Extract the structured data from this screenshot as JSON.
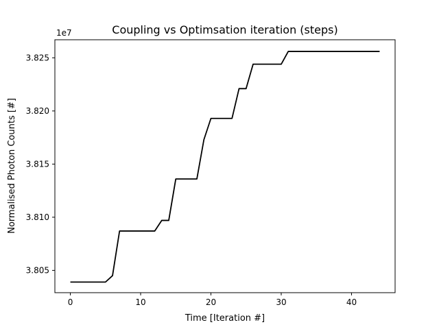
{
  "chart_data": {
    "type": "line",
    "title": "Coupling vs Optimsation iteration (steps)",
    "xlabel": "Time [Iteration #]",
    "ylabel": "Normalised Photon Counts [#]",
    "y_offset_label": "1e7",
    "xlim": [
      -2.2,
      46.2
    ],
    "ylim": [
      3.8029,
      3.8267
    ],
    "xticks": [
      {
        "value": 0,
        "label": "0"
      },
      {
        "value": 10,
        "label": "10"
      },
      {
        "value": 20,
        "label": "20"
      },
      {
        "value": 30,
        "label": "30"
      },
      {
        "value": 40,
        "label": "40"
      }
    ],
    "yticks": [
      {
        "value": 3.805,
        "label": "3.805"
      },
      {
        "value": 3.81,
        "label": "3.810"
      },
      {
        "value": 3.815,
        "label": "3.815"
      },
      {
        "value": 3.82,
        "label": "3.820"
      },
      {
        "value": 3.825,
        "label": "3.825"
      }
    ],
    "series": [
      {
        "color": "#000000",
        "x": [
          0,
          1,
          2,
          3,
          4,
          5,
          6,
          7,
          8,
          9,
          10,
          11,
          12,
          13,
          14,
          15,
          16,
          17,
          18,
          19,
          20,
          21,
          22,
          23,
          24,
          25,
          26,
          27,
          28,
          29,
          30,
          31,
          32,
          33,
          34,
          35,
          36,
          37,
          38,
          39,
          40,
          41,
          42,
          43,
          44
        ],
        "y": [
          3.8039,
          3.8039,
          3.8039,
          3.8039,
          3.8039,
          3.8039,
          3.8045,
          3.8087,
          3.8087,
          3.8087,
          3.8087,
          3.8087,
          3.8087,
          3.8097,
          3.8097,
          3.8136,
          3.8136,
          3.8136,
          3.8136,
          3.8173,
          3.8193,
          3.8193,
          3.8193,
          3.8193,
          3.8221,
          3.8221,
          3.8244,
          3.8244,
          3.8244,
          3.8244,
          3.8244,
          3.8256,
          3.8256,
          3.8256,
          3.8256,
          3.8256,
          3.8256,
          3.8256,
          3.8256,
          3.8256,
          3.8256,
          3.8256,
          3.8256,
          3.8256,
          3.8256
        ]
      }
    ]
  }
}
